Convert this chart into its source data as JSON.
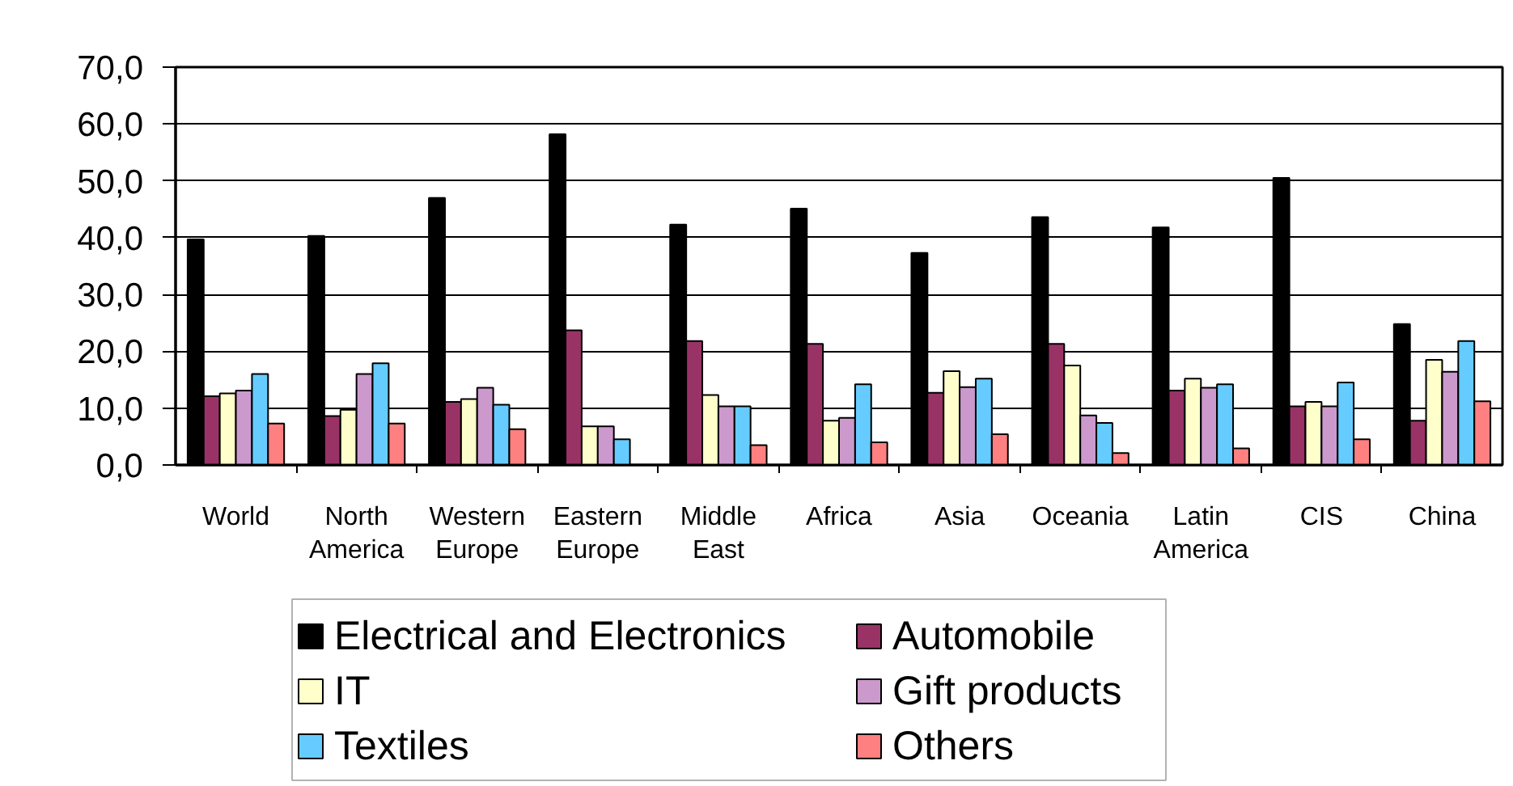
{
  "chart_data": {
    "type": "bar",
    "categories": [
      "World",
      "North America",
      "Western Europe",
      "Eastern Europe",
      "Middle East",
      "Africa",
      "Asia",
      "Oceania",
      "Latin America",
      "CIS",
      "China"
    ],
    "series": [
      {
        "name": "Electrical and Electronics",
        "color": "#000000",
        "values": [
          39.7,
          40.3,
          47.0,
          58.2,
          42.3,
          45.1,
          37.3,
          43.6,
          41.8,
          50.5,
          24.8
        ]
      },
      {
        "name": "Automobile",
        "color": "#993366",
        "values": [
          12.1,
          8.6,
          11.1,
          23.7,
          21.8,
          21.3,
          12.7,
          21.3,
          13.1,
          10.3,
          7.8
        ]
      },
      {
        "name": "IT",
        "color": "#ffffcc",
        "values": [
          12.6,
          9.7,
          11.6,
          6.8,
          12.3,
          7.8,
          16.5,
          17.5,
          15.2,
          11.1,
          18.5
        ]
      },
      {
        "name": "Gift products",
        "color": "#cc99cc",
        "values": [
          13.1,
          16.0,
          13.6,
          6.8,
          10.3,
          8.3,
          13.7,
          8.7,
          13.6,
          10.3,
          16.4
        ]
      },
      {
        "name": "Textiles",
        "color": "#66ccff",
        "values": [
          16.0,
          17.9,
          10.6,
          4.5,
          10.3,
          14.2,
          15.2,
          7.4,
          14.2,
          14.5,
          21.8
        ]
      },
      {
        "name": "Others",
        "color": "#ff8080",
        "values": [
          7.3,
          7.3,
          6.3,
          null,
          3.5,
          4.0,
          5.4,
          2.1,
          2.9,
          4.5,
          11.2
        ]
      }
    ],
    "ylim": [
      0,
      70
    ],
    "yticks": [
      {
        "value": 0,
        "label": "0,0"
      },
      {
        "value": 10,
        "label": "10,0"
      },
      {
        "value": 20,
        "label": "20,0"
      },
      {
        "value": 30,
        "label": "30,0"
      },
      {
        "value": 40,
        "label": "40,0"
      },
      {
        "value": 50,
        "label": "50,0"
      },
      {
        "value": 60,
        "label": "60,0"
      },
      {
        "value": 70,
        "label": "70,0"
      }
    ],
    "grid": "y",
    "legend": "bottom"
  }
}
